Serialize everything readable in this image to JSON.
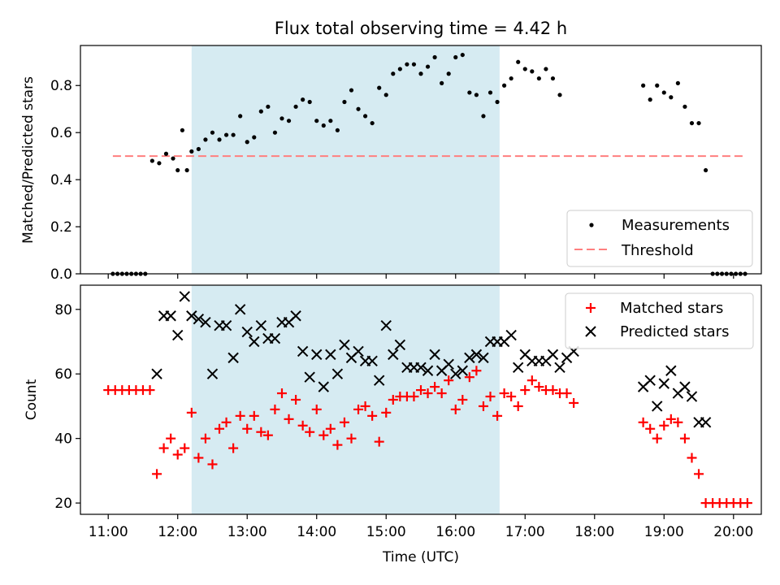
{
  "chart_data": [
    {
      "type": "scatter",
      "title": "Flux total observing time = 4.42 h",
      "xlabel": "",
      "ylabel": "Matched/Predicted stars",
      "xlim": [
        "10:36",
        "20:24"
      ],
      "ylim": [
        0,
        0.97
      ],
      "yticks": [
        0.0,
        0.2,
        0.4,
        0.6,
        0.8
      ],
      "ytick_labels": [
        "0.0",
        "0.2",
        "0.4",
        "0.6",
        "0.8"
      ],
      "shaded_span": {
        "from": "12:12",
        "to": "16:38",
        "color": "#add8e6"
      },
      "legend": {
        "position": "lower right",
        "entries": [
          "Measurements",
          "Threshold"
        ]
      },
      "series": [
        {
          "name": "Measurements",
          "color": "#000000",
          "marker": "dot",
          "points": [
            [
              "11:04",
              0
            ],
            [
              "11:08",
              0
            ],
            [
              "11:12",
              0
            ],
            [
              "11:16",
              0
            ],
            [
              "11:20",
              0
            ],
            [
              "11:24",
              0
            ],
            [
              "11:28",
              0
            ],
            [
              "11:32",
              0
            ],
            [
              "11:38",
              0.48
            ],
            [
              "11:44",
              0.47
            ],
            [
              "11:50",
              0.51
            ],
            [
              "11:56",
              0.49
            ],
            [
              "12:00",
              0.44
            ],
            [
              "12:04",
              0.61
            ],
            [
              "12:08",
              0.44
            ],
            [
              "12:12",
              0.52
            ],
            [
              "12:18",
              0.53
            ],
            [
              "12:24",
              0.57
            ],
            [
              "12:30",
              0.6
            ],
            [
              "12:36",
              0.57
            ],
            [
              "12:42",
              0.59
            ],
            [
              "12:48",
              0.59
            ],
            [
              "12:54",
              0.67
            ],
            [
              "13:00",
              0.56
            ],
            [
              "13:06",
              0.58
            ],
            [
              "13:12",
              0.69
            ],
            [
              "13:18",
              0.71
            ],
            [
              "13:24",
              0.6
            ],
            [
              "13:30",
              0.66
            ],
            [
              "13:36",
              0.65
            ],
            [
              "13:42",
              0.71
            ],
            [
              "13:48",
              0.74
            ],
            [
              "13:54",
              0.73
            ],
            [
              "14:00",
              0.65
            ],
            [
              "14:06",
              0.63
            ],
            [
              "14:12",
              0.65
            ],
            [
              "14:18",
              0.61
            ],
            [
              "14:24",
              0.73
            ],
            [
              "14:30",
              0.78
            ],
            [
              "14:36",
              0.7
            ],
            [
              "14:42",
              0.67
            ],
            [
              "14:48",
              0.64
            ],
            [
              "14:54",
              0.79
            ],
            [
              "15:00",
              0.76
            ],
            [
              "15:06",
              0.85
            ],
            [
              "15:12",
              0.87
            ],
            [
              "15:18",
              0.89
            ],
            [
              "15:24",
              0.89
            ],
            [
              "15:30",
              0.85
            ],
            [
              "15:36",
              0.88
            ],
            [
              "15:42",
              0.92
            ],
            [
              "15:48",
              0.81
            ],
            [
              "15:54",
              0.85
            ],
            [
              "16:00",
              0.92
            ],
            [
              "16:06",
              0.93
            ],
            [
              "16:12",
              0.77
            ],
            [
              "16:18",
              0.76
            ],
            [
              "16:24",
              0.67
            ],
            [
              "16:30",
              0.77
            ],
            [
              "16:36",
              0.73
            ],
            [
              "16:42",
              0.8
            ],
            [
              "16:48",
              0.83
            ],
            [
              "16:54",
              0.9
            ],
            [
              "17:00",
              0.87
            ],
            [
              "17:06",
              0.86
            ],
            [
              "17:12",
              0.83
            ],
            [
              "17:18",
              0.87
            ],
            [
              "17:24",
              0.83
            ],
            [
              "17:30",
              0.76
            ],
            [
              "18:42",
              0.8
            ],
            [
              "18:48",
              0.74
            ],
            [
              "18:54",
              0.8
            ],
            [
              "19:00",
              0.77
            ],
            [
              "19:06",
              0.75
            ],
            [
              "19:12",
              0.81
            ],
            [
              "19:18",
              0.71
            ],
            [
              "19:24",
              0.64
            ],
            [
              "19:30",
              0.64
            ],
            [
              "19:36",
              0.44
            ],
            [
              "19:42",
              0
            ],
            [
              "19:46",
              0
            ],
            [
              "19:50",
              0
            ],
            [
              "19:54",
              0
            ],
            [
              "19:58",
              0
            ],
            [
              "20:02",
              0
            ],
            [
              "20:06",
              0
            ],
            [
              "20:10",
              0
            ]
          ]
        },
        {
          "name": "Threshold",
          "color": "#ff7f7f",
          "style": "dashed",
          "x": [
            "11:04",
            "20:10"
          ],
          "values": [
            0.5,
            0.5
          ]
        }
      ]
    },
    {
      "type": "scatter",
      "title": "",
      "xlabel": "Time (UTC)",
      "ylabel": "Count",
      "xlim": [
        "10:36",
        "20:24"
      ],
      "ylim": [
        16.5,
        87.5
      ],
      "xtick_labels": [
        "11:00",
        "12:00",
        "13:00",
        "14:00",
        "15:00",
        "16:00",
        "17:00",
        "18:00",
        "19:00",
        "20:00"
      ],
      "ytick_labels": [
        "20",
        "40",
        "60",
        "80"
      ],
      "yticks": [
        20,
        40,
        60,
        80
      ],
      "shaded_span": {
        "from": "12:12",
        "to": "16:38",
        "color": "#add8e6"
      },
      "legend": {
        "position": "upper right",
        "entries": [
          "Matched stars",
          "Predicted stars"
        ]
      },
      "series": [
        {
          "name": "Matched stars",
          "color": "#ff0000",
          "marker": "+",
          "points": [
            [
              "11:00",
              55
            ],
            [
              "11:06",
              55
            ],
            [
              "11:12",
              55
            ],
            [
              "11:18",
              55
            ],
            [
              "11:24",
              55
            ],
            [
              "11:30",
              55
            ],
            [
              "11:36",
              55
            ],
            [
              "11:42",
              29
            ],
            [
              "11:48",
              37
            ],
            [
              "11:54",
              40
            ],
            [
              "12:00",
              35
            ],
            [
              "12:06",
              37
            ],
            [
              "12:12",
              48
            ],
            [
              "12:18",
              34
            ],
            [
              "12:24",
              40
            ],
            [
              "12:30",
              32
            ],
            [
              "12:36",
              43
            ],
            [
              "12:42",
              45
            ],
            [
              "12:48",
              37
            ],
            [
              "12:54",
              47
            ],
            [
              "13:00",
              43
            ],
            [
              "13:06",
              47
            ],
            [
              "13:12",
              42
            ],
            [
              "13:18",
              41
            ],
            [
              "13:24",
              49
            ],
            [
              "13:30",
              54
            ],
            [
              "13:36",
              46
            ],
            [
              "13:42",
              52
            ],
            [
              "13:48",
              44
            ],
            [
              "13:54",
              42
            ],
            [
              "14:00",
              49
            ],
            [
              "14:06",
              41
            ],
            [
              "14:12",
              43
            ],
            [
              "14:18",
              38
            ],
            [
              "14:24",
              45
            ],
            [
              "14:30",
              40
            ],
            [
              "14:36",
              49
            ],
            [
              "14:42",
              50
            ],
            [
              "14:48",
              47
            ],
            [
              "14:54",
              39
            ],
            [
              "15:00",
              48
            ],
            [
              "15:06",
              52
            ],
            [
              "15:12",
              53
            ],
            [
              "15:18",
              53
            ],
            [
              "15:24",
              53
            ],
            [
              "15:30",
              55
            ],
            [
              "15:36",
              54
            ],
            [
              "15:42",
              56
            ],
            [
              "15:48",
              54
            ],
            [
              "15:54",
              58
            ],
            [
              "16:00",
              49
            ],
            [
              "16:06",
              52
            ],
            [
              "16:12",
              59
            ],
            [
              "16:18",
              61
            ],
            [
              "16:24",
              50
            ],
            [
              "16:30",
              53
            ],
            [
              "16:36",
              47
            ],
            [
              "16:42",
              54
            ],
            [
              "16:48",
              53
            ],
            [
              "16:54",
              50
            ],
            [
              "17:00",
              55
            ],
            [
              "17:06",
              58
            ],
            [
              "17:12",
              56
            ],
            [
              "17:18",
              55
            ],
            [
              "17:24",
              55
            ],
            [
              "17:30",
              54
            ],
            [
              "17:36",
              54
            ],
            [
              "17:42",
              51
            ],
            [
              "18:42",
              45
            ],
            [
              "18:48",
              43
            ],
            [
              "18:54",
              40
            ],
            [
              "19:00",
              44
            ],
            [
              "19:06",
              46
            ],
            [
              "19:12",
              45
            ],
            [
              "19:18",
              40
            ],
            [
              "19:24",
              34
            ],
            [
              "19:30",
              29
            ],
            [
              "19:36",
              20
            ],
            [
              "19:42",
              20
            ],
            [
              "19:48",
              20
            ],
            [
              "19:54",
              20
            ],
            [
              "20:00",
              20
            ],
            [
              "20:06",
              20
            ],
            [
              "20:12",
              20
            ]
          ]
        },
        {
          "name": "Predicted stars",
          "color": "#000000",
          "marker": "x",
          "points": [
            [
              "11:42",
              60
            ],
            [
              "11:48",
              78
            ],
            [
              "11:54",
              78
            ],
            [
              "12:00",
              72
            ],
            [
              "12:06",
              84
            ],
            [
              "12:12",
              78
            ],
            [
              "12:18",
              77
            ],
            [
              "12:24",
              76
            ],
            [
              "12:30",
              60
            ],
            [
              "12:36",
              75
            ],
            [
              "12:42",
              75
            ],
            [
              "12:48",
              65
            ],
            [
              "12:54",
              80
            ],
            [
              "13:00",
              73
            ],
            [
              "13:06",
              70
            ],
            [
              "13:12",
              75
            ],
            [
              "13:18",
              71
            ],
            [
              "13:24",
              71
            ],
            [
              "13:30",
              76
            ],
            [
              "13:36",
              76
            ],
            [
              "13:42",
              78
            ],
            [
              "13:48",
              67
            ],
            [
              "13:54",
              59
            ],
            [
              "14:00",
              66
            ],
            [
              "14:06",
              56
            ],
            [
              "14:12",
              66
            ],
            [
              "14:18",
              60
            ],
            [
              "14:24",
              69
            ],
            [
              "14:30",
              65
            ],
            [
              "14:36",
              67
            ],
            [
              "14:42",
              64
            ],
            [
              "14:48",
              64
            ],
            [
              "14:54",
              58
            ],
            [
              "15:00",
              75
            ],
            [
              "15:06",
              66
            ],
            [
              "15:12",
              69
            ],
            [
              "15:18",
              62
            ],
            [
              "15:24",
              62
            ],
            [
              "15:30",
              62
            ],
            [
              "15:36",
              61
            ],
            [
              "15:42",
              66
            ],
            [
              "15:48",
              61
            ],
            [
              "15:54",
              63
            ],
            [
              "16:00",
              60
            ],
            [
              "16:06",
              61
            ],
            [
              "16:12",
              65
            ],
            [
              "16:18",
              66
            ],
            [
              "16:24",
              65
            ],
            [
              "16:30",
              70
            ],
            [
              "16:36",
              70
            ],
            [
              "16:42",
              70
            ],
            [
              "16:48",
              72
            ],
            [
              "16:54",
              62
            ],
            [
              "17:00",
              66
            ],
            [
              "17:06",
              64
            ],
            [
              "17:12",
              64
            ],
            [
              "17:18",
              64
            ],
            [
              "17:24",
              66
            ],
            [
              "17:30",
              62
            ],
            [
              "17:36",
              65
            ],
            [
              "17:42",
              67
            ],
            [
              "18:42",
              56
            ],
            [
              "18:48",
              58
            ],
            [
              "18:54",
              50
            ],
            [
              "19:00",
              57
            ],
            [
              "19:06",
              61
            ],
            [
              "19:12",
              54
            ],
            [
              "19:18",
              56
            ],
            [
              "19:24",
              53
            ],
            [
              "19:30",
              45
            ],
            [
              "19:36",
              45
            ]
          ]
        }
      ]
    }
  ]
}
